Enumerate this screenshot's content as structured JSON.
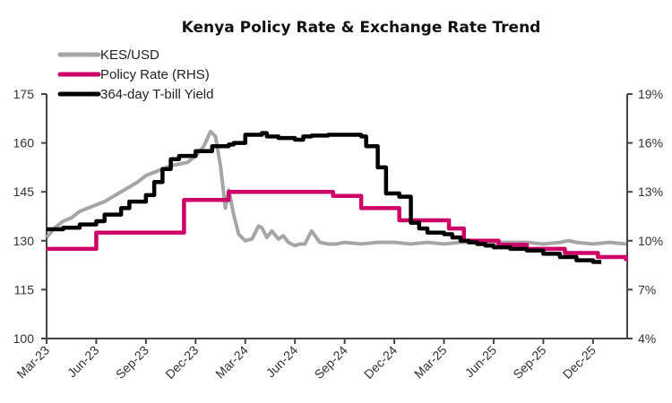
{
  "chart_data": {
    "type": "line",
    "title": "Kenya Policy Rate & Exchange Rate Trend",
    "xlabel": "",
    "ylabel": "",
    "y2label": "",
    "x_tick_labels": [
      "Mar-23",
      "Jun-23",
      "Sep-23",
      "Dec-23",
      "Mar-24",
      "Jun-24",
      "Sep-24",
      "Dec-24",
      "Mar-25",
      "Jun-25",
      "Sep-25",
      "Dec-25"
    ],
    "x_range_months": [
      0,
      35
    ],
    "x_units": "months since Mar-23",
    "y_left": {
      "ticks": [
        "100",
        "115",
        "130",
        "145",
        "160",
        "175"
      ],
      "range": [
        100,
        175
      ]
    },
    "y_right": {
      "ticks": [
        "4%",
        "7%",
        "10%",
        "13%",
        "16%",
        "19%"
      ],
      "range": [
        4,
        19
      ]
    },
    "grid": false,
    "legend_position": "top-left",
    "series": [
      {
        "name": "KES/USD",
        "axis": "left",
        "color": "#a6a6a6",
        "x": [
          0,
          0.5,
          1,
          1.5,
          2,
          2.5,
          3,
          3.5,
          4,
          4.5,
          5,
          5.5,
          6,
          6.5,
          7,
          7.5,
          8,
          8.5,
          9,
          9.5,
          9.9,
          10.2,
          10.5,
          10.8,
          11,
          11.3,
          11.6,
          12,
          12.4,
          12.8,
          13,
          13.3,
          13.6,
          14,
          14.3,
          14.6,
          15,
          15.3,
          15.6,
          16,
          16.5,
          17,
          17.5,
          18,
          19,
          20,
          21,
          22,
          23,
          24,
          25,
          26,
          27,
          28,
          29,
          30,
          31,
          31.5,
          32,
          33,
          34,
          35
        ],
        "values": [
          131,
          134,
          136,
          137,
          139,
          140,
          141,
          142,
          143.5,
          145,
          146.5,
          148,
          150,
          151,
          152,
          153,
          153.5,
          154,
          156,
          159,
          163.5,
          162,
          153,
          140,
          145.5,
          138,
          132,
          130,
          130.5,
          134.5,
          134,
          131,
          133,
          130.5,
          131.5,
          129.5,
          128.5,
          129,
          129,
          133,
          129.5,
          129,
          129,
          129.5,
          129,
          129.5,
          129.5,
          129,
          129.5,
          129,
          129.5,
          129.5,
          129.5,
          129.5,
          129.5,
          129,
          129.5,
          130,
          129.5,
          129,
          129.5,
          129
        ]
      },
      {
        "name": "Policy Rate (RHS)",
        "axis": "right",
        "color": "#cc0066",
        "step": true,
        "x": [
          0,
          3,
          8.3,
          10.3,
          11,
          14,
          17.3,
          19,
          21.3,
          22,
          24.3,
          25.2,
          27.3,
          29,
          31.3,
          33.3,
          35
        ],
        "values": [
          9.5,
          10.5,
          12.5,
          12.5,
          13.0,
          13.0,
          12.75,
          12.0,
          11.25,
          11.25,
          10.75,
          10.0,
          9.75,
          9.5,
          9.25,
          9.0,
          8.75
        ]
      },
      {
        "name": "364-day T-bill Yield",
        "axis": "right",
        "color": "#000000",
        "step": true,
        "x": [
          0,
          1,
          2,
          3,
          3.5,
          4.5,
          5,
          6,
          6.5,
          7,
          7.5,
          8,
          9,
          10,
          11,
          11.3,
          12,
          13,
          13.3,
          14,
          15,
          15.5,
          16,
          17,
          18,
          19,
          19.3,
          20,
          20.5,
          21.3,
          22,
          22.5,
          23,
          24,
          24.5,
          25,
          25.5,
          26,
          26.5,
          27,
          27.5,
          28,
          29,
          30,
          31,
          32,
          33
        ],
        "values": [
          10.7,
          10.8,
          11.0,
          11.2,
          11.6,
          12.0,
          12.4,
          12.8,
          13.6,
          14.4,
          15.0,
          15.2,
          15.5,
          15.8,
          15.9,
          16.0,
          16.5,
          16.6,
          16.4,
          16.3,
          16.2,
          16.4,
          16.45,
          16.5,
          16.5,
          16.4,
          15.8,
          14.5,
          12.9,
          12.7,
          11.1,
          10.75,
          10.5,
          10.4,
          10.2,
          10.0,
          9.9,
          9.8,
          9.7,
          9.6,
          9.6,
          9.5,
          9.4,
          9.2,
          9.0,
          8.8,
          8.7
        ]
      }
    ]
  }
}
